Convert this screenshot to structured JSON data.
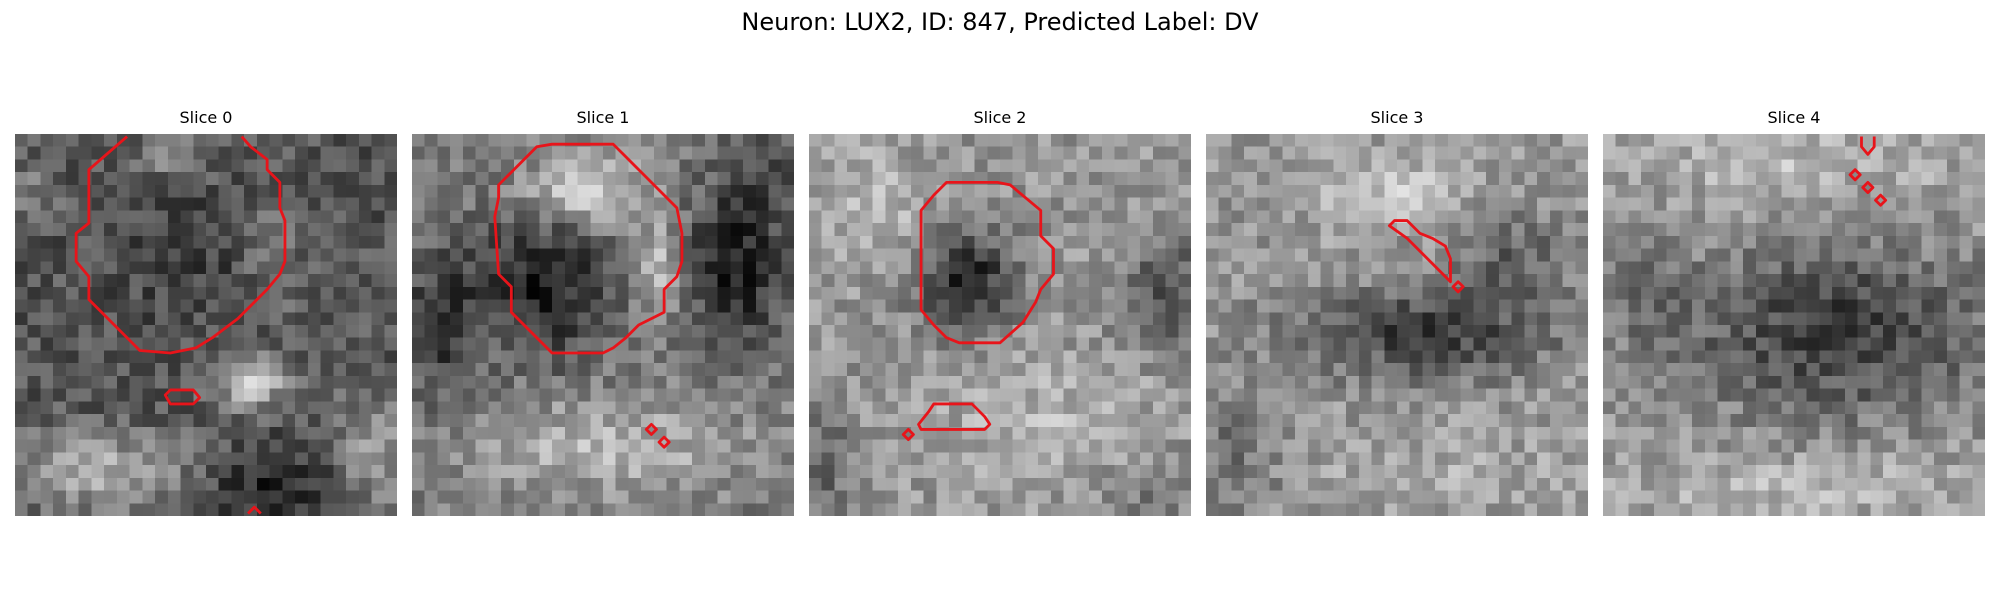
{
  "figure": {
    "title": "Neuron: LUX2, ID: 847, Predicted Label: DV"
  },
  "panels": [
    {
      "title": "Slice 0",
      "palette": [
        "#4a4a4a",
        "#3d3d3d",
        "#5c5c5c",
        "#6e6e6e",
        "#555555",
        "#444444",
        "#8a8a8a",
        "#a5a5a5"
      ],
      "contour_color": "#e8141a"
    },
    {
      "title": "Slice 1",
      "palette": [
        "#1c1c1c",
        "#2a2a2a",
        "#6a6a6a",
        "#9a9a9a",
        "#c0c0c0",
        "#d8d8d8",
        "#b0b0b0",
        "#8a8a8a"
      ],
      "contour_color": "#e8141a"
    },
    {
      "title": "Slice 2",
      "palette": [
        "#2a2a2a",
        "#555555",
        "#8a8a8a",
        "#a8a8a8",
        "#c4c4c4",
        "#d6d6d6",
        "#b8b8b8",
        "#999999"
      ],
      "contour_color": "#e8141a"
    },
    {
      "title": "Slice 3",
      "palette": [
        "#3a3a3a",
        "#565656",
        "#7a7a7a",
        "#9a9a9a",
        "#bcbcbc",
        "#d0d0d0",
        "#a8a8a8",
        "#888888"
      ],
      "contour_color": "#e8141a"
    },
    {
      "title": "Slice 4",
      "palette": [
        "#3a3a3a",
        "#4e4e4e",
        "#6a6a6a",
        "#8a8a8a",
        "#aaaaaa",
        "#c8c8c8",
        "#b4b4b4",
        "#939393"
      ],
      "contour_color": "#e8141a"
    }
  ]
}
